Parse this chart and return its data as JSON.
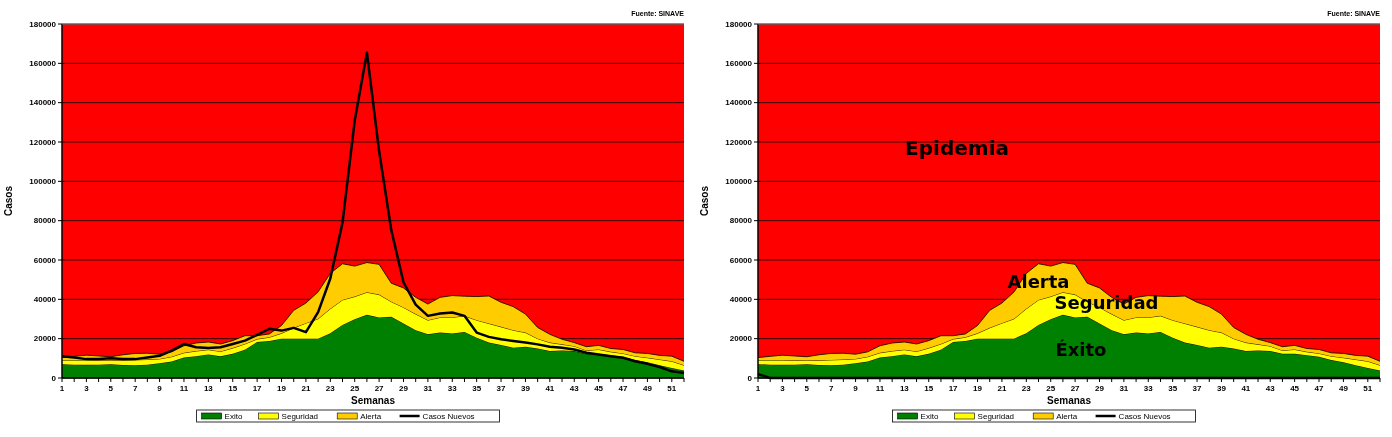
{
  "chart_data": [
    {
      "type": "area",
      "stacked": true,
      "xlabel": "Semanas",
      "ylabel": "Casos",
      "annotations": [
        "Fuente: SINAVE"
      ],
      "x": [
        1,
        2,
        3,
        4,
        5,
        6,
        7,
        8,
        9,
        10,
        11,
        12,
        13,
        14,
        15,
        16,
        17,
        18,
        19,
        20,
        21,
        22,
        23,
        24,
        25,
        26,
        27,
        28,
        29,
        30,
        31,
        32,
        33,
        34,
        35,
        36,
        37,
        38,
        39,
        40,
        41,
        42,
        43,
        44,
        45,
        46,
        47,
        48,
        49,
        50,
        51,
        52
      ],
      "xlim": [
        1,
        52
      ],
      "xticks": [
        1,
        {
          "value": 2,
          "label": null
        },
        3,
        {
          "value": 4,
          "label": null
        },
        5,
        {
          "value": 6,
          "label": null
        },
        7,
        {
          "value": 8,
          "label": null
        },
        9,
        {
          "value": 10,
          "label": null
        },
        11,
        {
          "value": 12,
          "label": null
        },
        13,
        {
          "value": 14,
          "label": null
        },
        15,
        {
          "value": 16,
          "label": null
        },
        17,
        {
          "value": 18,
          "label": null
        },
        19,
        {
          "value": 20,
          "label": null
        },
        21,
        {
          "value": 22,
          "label": null
        },
        23,
        {
          "value": 24,
          "label": null
        },
        25,
        {
          "value": 26,
          "label": null
        },
        27,
        {
          "value": 28,
          "label": null
        },
        29,
        {
          "value": 30,
          "label": null
        },
        31,
        {
          "value": 32,
          "label": null
        },
        33,
        {
          "value": 34,
          "label": null
        },
        35,
        {
          "value": 36,
          "label": null
        },
        37,
        {
          "value": 38,
          "label": null
        },
        39,
        {
          "value": 40,
          "label": null
        },
        41,
        {
          "value": 42,
          "label": null
        },
        43,
        {
          "value": 44,
          "label": null
        },
        45,
        {
          "value": 46,
          "label": null
        },
        47,
        {
          "value": 48,
          "label": null
        },
        49,
        {
          "value": 50,
          "label": null
        },
        51,
        {
          "value": 52,
          "label": null
        }
      ],
      "ylim": [
        0,
        180000
      ],
      "yticks": [
        0,
        20000,
        40000,
        60000,
        80000,
        100000,
        120000,
        140000,
        160000,
        180000
      ],
      "grid": "y",
      "legend": "bottom",
      "bands": [
        {
          "axis": "y",
          "from": 0,
          "to": 180000,
          "color": "#ff0000"
        }
      ],
      "series": [
        {
          "name": "Exito",
          "type": "area",
          "color": "#008000",
          "values": [
            7000,
            6800,
            6700,
            6800,
            7000,
            6600,
            6500,
            6800,
            7500,
            8400,
            10400,
            11100,
            12000,
            11000,
            12300,
            14400,
            18300,
            18800,
            20000,
            20000,
            20000,
            20000,
            22700,
            27000,
            29900,
            32100,
            30800,
            31100,
            27700,
            24300,
            22200,
            23100,
            22600,
            23400,
            20500,
            18000,
            16800,
            15400,
            15900,
            15000,
            13700,
            14000,
            13700,
            12300,
            12300,
            11600,
            10800,
            9100,
            8000,
            6500,
            5100,
            3800
          ]
        },
        {
          "name": "Seguridad",
          "type": "area",
          "color": "#ffff00",
          "values": [
            2100,
            2300,
            2400,
            2200,
            1900,
            2400,
            2700,
            2600,
            2200,
            2400,
            2400,
            2600,
            2400,
            2500,
            2900,
            2900,
            1500,
            1900,
            2700,
            5500,
            7900,
            10100,
            12500,
            12700,
            11500,
            11500,
            11600,
            7700,
            8200,
            8200,
            7200,
            7700,
            8200,
            8200,
            8900,
            9700,
            9200,
            8900,
            7200,
            5000,
            4300,
            3100,
            2500,
            1700,
            2200,
            1700,
            1700,
            2000,
            2300,
            2900,
            3400,
            2700
          ]
        },
        {
          "name": "Alerta",
          "type": "area",
          "color": "#ffcc00",
          "values": [
            1300,
            1900,
            2500,
            2200,
            1900,
            2800,
            3300,
            3200,
            2400,
            2500,
            3600,
            4100,
            3900,
            3800,
            3800,
            4200,
            1700,
            1700,
            4000,
            8900,
            10200,
            13700,
            18000,
            18400,
            15500,
            15100,
            15400,
            9400,
            9900,
            8500,
            8200,
            10200,
            11100,
            10000,
            12000,
            14000,
            12500,
            12000,
            9400,
            5700,
            4200,
            2600,
            1800,
            1900,
            2100,
            1700,
            2000,
            1700,
            2200,
            2100,
            2600,
            2000
          ]
        },
        {
          "name": "Casos Nuevos",
          "type": "line",
          "color": "#000000",
          "values": [
            11100,
            10400,
            9600,
            9600,
            10100,
            9600,
            9600,
            10400,
            11300,
            13900,
            17300,
            15600,
            15200,
            15600,
            17300,
            19000,
            21900,
            25000,
            24100,
            25500,
            23300,
            33500,
            50600,
            79000,
            130800,
            165500,
            115400,
            75200,
            48700,
            37300,
            31600,
            32800,
            33300,
            31600,
            23100,
            20900,
            19700,
            18800,
            18000,
            17100,
            15900,
            15400,
            14500,
            12800,
            12000,
            11100,
            10300,
            8500,
            7200,
            5600,
            3400,
            2600
          ]
        }
      ]
    },
    {
      "type": "area",
      "stacked": true,
      "xlabel": "Semanas",
      "ylabel": "Casos",
      "annotations": [
        "Fuente: SINAVE",
        "Alerta",
        "Seguridad",
        "Éxito"
      ],
      "x": [
        1,
        2,
        3,
        4,
        5,
        6,
        7,
        8,
        9,
        10,
        11,
        12,
        13,
        14,
        15,
        16,
        17,
        18,
        19,
        20,
        21,
        22,
        23,
        24,
        25,
        26,
        27,
        28,
        29,
        30,
        31,
        32,
        33,
        34,
        35,
        36,
        37,
        38,
        39,
        40,
        41,
        42,
        43,
        44,
        45,
        46,
        47,
        48,
        49,
        50,
        51,
        52
      ],
      "xlim": [
        1,
        52
      ],
      "xticks": [
        1,
        {
          "value": 2,
          "label": null
        },
        3,
        {
          "value": 4,
          "label": null
        },
        5,
        {
          "value": 6,
          "label": null
        },
        7,
        {
          "value": 8,
          "label": null
        },
        9,
        {
          "value": 10,
          "label": null
        },
        11,
        {
          "value": 12,
          "label": null
        },
        13,
        {
          "value": 14,
          "label": null
        },
        15,
        {
          "value": 16,
          "label": null
        },
        17,
        {
          "value": 18,
          "label": null
        },
        19,
        {
          "value": 20,
          "label": null
        },
        21,
        {
          "value": 22,
          "label": null
        },
        23,
        {
          "value": 24,
          "label": null
        },
        25,
        {
          "value": 26,
          "label": null
        },
        27,
        {
          "value": 28,
          "label": null
        },
        29,
        {
          "value": 30,
          "label": null
        },
        31,
        {
          "value": 32,
          "label": null
        },
        33,
        {
          "value": 34,
          "label": null
        },
        35,
        {
          "value": 36,
          "label": null
        },
        37,
        {
          "value": 38,
          "label": null
        },
        39,
        {
          "value": 40,
          "label": null
        },
        41,
        {
          "value": 42,
          "label": null
        },
        43,
        {
          "value": 44,
          "label": null
        },
        45,
        {
          "value": 46,
          "label": null
        },
        47,
        {
          "value": 48,
          "label": null
        },
        49,
        {
          "value": 50,
          "label": null
        },
        51,
        {
          "value": 52,
          "label": null
        }
      ],
      "ylim": [
        0,
        180000
      ],
      "yticks": [
        0,
        20000,
        40000,
        60000,
        80000,
        100000,
        120000,
        140000,
        160000,
        180000
      ],
      "grid": "y",
      "legend": "bottom",
      "bands": [
        {
          "axis": "y",
          "from": 0,
          "to": 180000,
          "color": "#ff0000",
          "label": "Epidemia"
        }
      ],
      "series": [
        {
          "name": "Exito",
          "type": "area",
          "color": "#008000",
          "values": [
            7000,
            6800,
            6700,
            6800,
            7000,
            6600,
            6500,
            6800,
            7500,
            8400,
            10400,
            11100,
            12000,
            11000,
            12300,
            14400,
            18300,
            18800,
            20000,
            20000,
            20000,
            20000,
            22700,
            27000,
            29900,
            32100,
            30800,
            31100,
            27700,
            24300,
            22200,
            23100,
            22600,
            23400,
            20500,
            18000,
            16800,
            15400,
            15900,
            15000,
            13700,
            14000,
            13700,
            12300,
            12300,
            11600,
            10800,
            9100,
            8000,
            6500,
            5100,
            3800
          ]
        },
        {
          "name": "Seguridad",
          "type": "area",
          "color": "#ffff00",
          "values": [
            2100,
            2300,
            2400,
            2200,
            1900,
            2400,
            2700,
            2600,
            2200,
            2400,
            2400,
            2600,
            2400,
            2500,
            2900,
            2900,
            1500,
            1900,
            2700,
            5500,
            7900,
            10100,
            12500,
            12700,
            11500,
            11500,
            11600,
            7700,
            8200,
            8200,
            7200,
            7700,
            8200,
            8200,
            8900,
            9700,
            9200,
            8900,
            7200,
            5000,
            4300,
            3100,
            2500,
            1700,
            2200,
            1700,
            1700,
            2000,
            2300,
            2900,
            3400,
            2700
          ]
        },
        {
          "name": "Alerta",
          "type": "area",
          "color": "#ffcc00",
          "values": [
            1300,
            1900,
            2500,
            2200,
            1900,
            2800,
            3300,
            3200,
            2400,
            2500,
            3600,
            4100,
            3900,
            3800,
            3800,
            4200,
            1700,
            1700,
            4000,
            8900,
            10200,
            13700,
            18000,
            18400,
            15500,
            15100,
            15400,
            9400,
            9900,
            8500,
            8200,
            10200,
            11100,
            10000,
            12000,
            14000,
            12500,
            12000,
            9400,
            5700,
            4200,
            2600,
            1800,
            1900,
            2100,
            1700,
            2000,
            1700,
            2200,
            2100,
            2600,
            2000
          ]
        },
        {
          "name": "Casos Nuevos",
          "type": "line",
          "color": "#000000",
          "values": [
            2000,
            0,
            0,
            0,
            0,
            0,
            0,
            0,
            0,
            0,
            0,
            0,
            0,
            0,
            0,
            0,
            0,
            0,
            0,
            0,
            0,
            0,
            0,
            0,
            0,
            0,
            0,
            0,
            0,
            0,
            0,
            0,
            0,
            0,
            0,
            0,
            0,
            0,
            0,
            0,
            0,
            0,
            0,
            0,
            0,
            0,
            0,
            0,
            0,
            0,
            0,
            0
          ]
        }
      ]
    }
  ]
}
